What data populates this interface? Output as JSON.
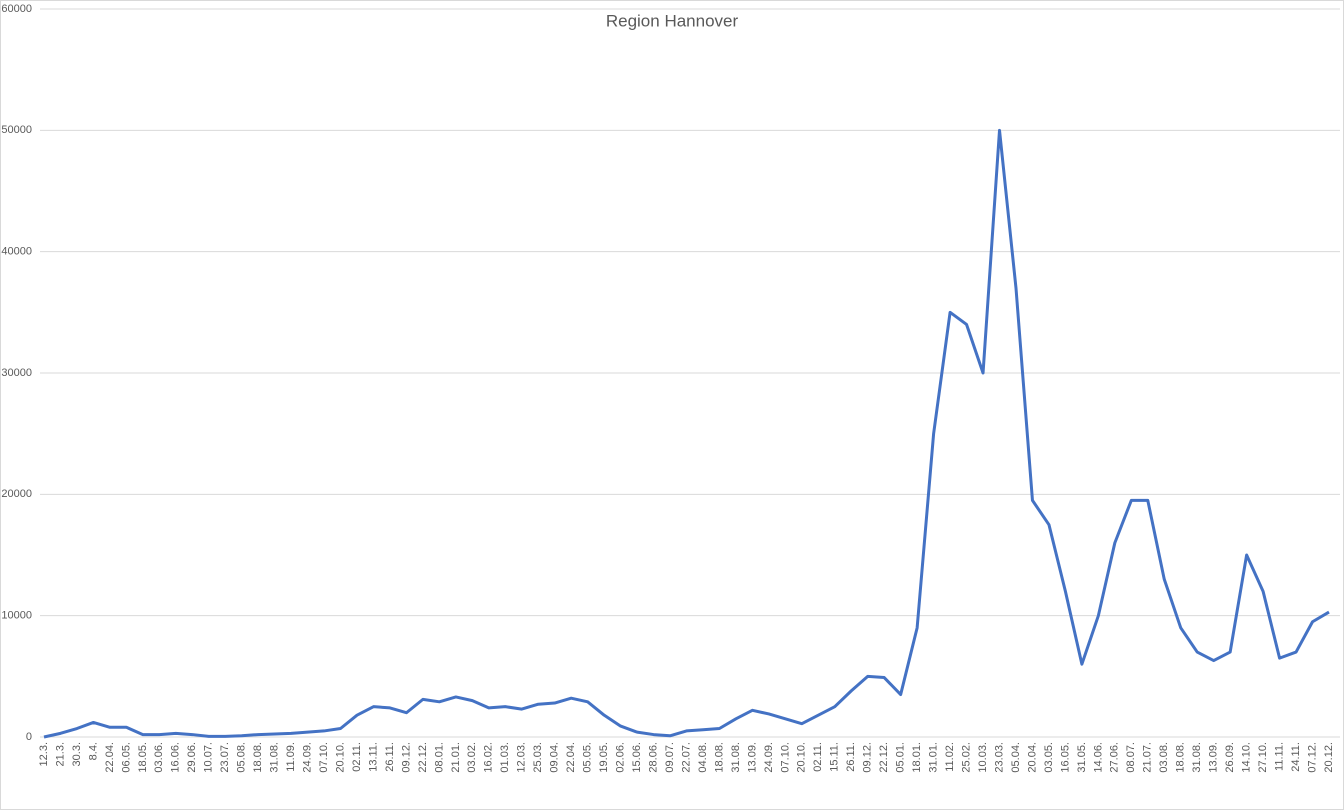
{
  "chart_data": {
    "type": "line",
    "title": "Region Hannover",
    "categories": [
      "12.3.",
      "21.3.",
      "30.3.",
      "8.4.",
      "22.04.",
      "06.05.",
      "18.05.",
      "03.06.",
      "16.06.",
      "29.06.",
      "10.07.",
      "23.07.",
      "05.08.",
      "18.08.",
      "31.08.",
      "11.09.",
      "24.09.",
      "07.10.",
      "20.10.",
      "02.11.",
      "13.11.",
      "26.11.",
      "09.12.",
      "22.12.",
      "08.01.",
      "21.01.",
      "03.02.",
      "16.02.",
      "01.03.",
      "12.03.",
      "25.03.",
      "09.04.",
      "22.04.",
      "05.05.",
      "19.05.",
      "02.06.",
      "15.06.",
      "28.06.",
      "09.07.",
      "22.07.",
      "04.08.",
      "18.08.",
      "31.08.",
      "13.09.",
      "24.09.",
      "07.10.",
      "20.10.",
      "02.11.",
      "15.11.",
      "26.11.",
      "09.12.",
      "22.12.",
      "05.01.",
      "18.01.",
      "31.01.",
      "11.02.",
      "25.02.",
      "10.03.",
      "23.03.",
      "05.04.",
      "20.04.",
      "03.05.",
      "16.05.",
      "31.05.",
      "14.06.",
      "27.06.",
      "08.07.",
      "21.07.",
      "03.08.",
      "18.08.",
      "31.08.",
      "13.09.",
      "26.09.",
      "14.10.",
      "27.10.",
      "11.11.",
      "24.11.",
      "07.12.",
      "20.12."
    ],
    "series": [
      {
        "name": "Region Hannover",
        "color": "#4472c4",
        "values": [
          0,
          300,
          700,
          1200,
          800,
          800,
          200,
          200,
          300,
          200,
          50,
          50,
          100,
          200,
          250,
          300,
          400,
          500,
          700,
          1800,
          2500,
          2400,
          2000,
          3100,
          2900,
          3300,
          3000,
          2400,
          2500,
          2300,
          2700,
          2800,
          3200,
          2900,
          1800,
          900,
          400,
          200,
          100,
          500,
          600,
          700,
          1500,
          2200,
          1900,
          1500,
          1100,
          1800,
          2500,
          3800,
          5000,
          4900,
          3500,
          9000,
          25000,
          35000,
          34000,
          30000,
          50000,
          37000,
          19500,
          17500,
          12000,
          6000,
          10000,
          16000,
          19500,
          19500,
          13000,
          9000,
          7000,
          6300,
          7000,
          15000,
          12000,
          6500,
          7000,
          9500,
          10300
        ]
      }
    ],
    "ylim": [
      0,
      60000
    ],
    "yticks": [
      0,
      10000,
      20000,
      30000,
      40000,
      50000,
      60000
    ],
    "grid": true
  }
}
